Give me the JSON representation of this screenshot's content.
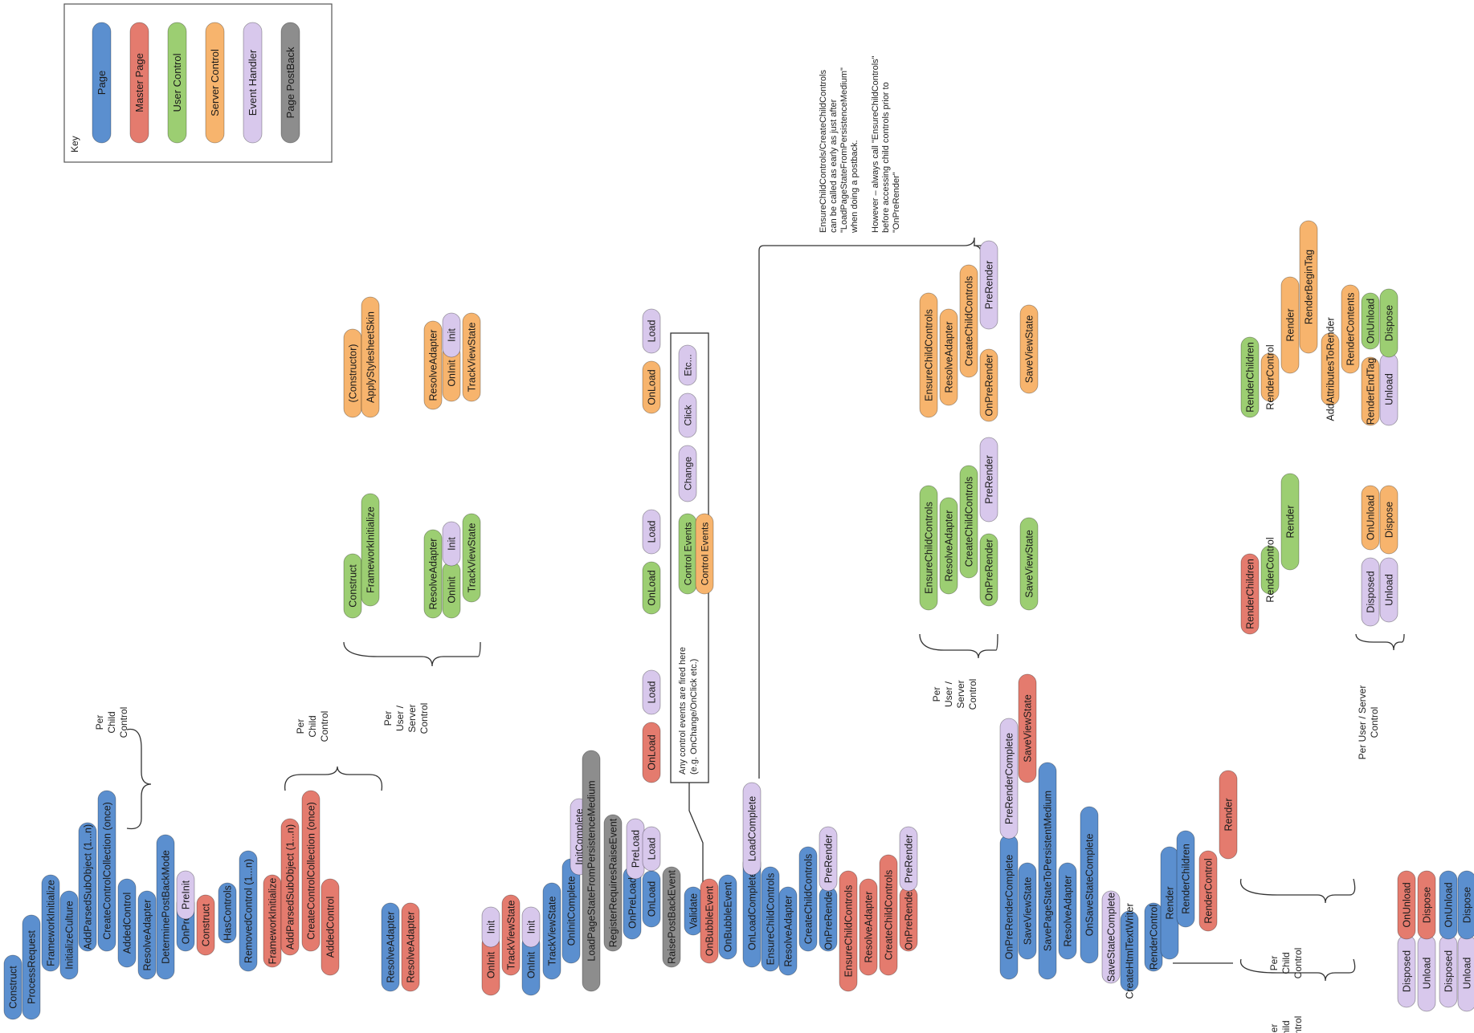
{
  "colors": {
    "page": "#5b8fcf",
    "master": "#e47b6e",
    "user": "#9cce72",
    "server": "#f7b46d",
    "event": "#d8c8ec",
    "postback": "#8d8d8d"
  },
  "key": {
    "title": "Key",
    "items": [
      {
        "label": "Page",
        "type": "page"
      },
      {
        "label": "Master Page",
        "type": "master"
      },
      {
        "label": "User Control",
        "type": "user"
      },
      {
        "label": "Server Control",
        "type": "server"
      },
      {
        "label": "Event Handler",
        "type": "event"
      },
      {
        "label": "Page PostBack",
        "type": "postback"
      }
    ]
  },
  "labels": {
    "per_child_control": [
      "Per",
      "Child",
      "Control"
    ],
    "per_user_server": [
      "Per",
      "User /",
      "Server",
      "Control"
    ],
    "per_user_server_inline": [
      "Per User / Server",
      "Control"
    ]
  },
  "events_box": {
    "note": [
      "Any control events are fired here",
      "(e.g. OnChange/OnClick etc.)"
    ],
    "items": [
      {
        "label": "Control Events",
        "type": "user"
      },
      {
        "label": "Control Events",
        "type": "server"
      },
      {
        "label": "Change",
        "type": "event"
      },
      {
        "label": "Click",
        "type": "event"
      },
      {
        "label": "Etc...",
        "type": "event"
      }
    ]
  },
  "annotation": [
    "EnsureChildControls/CreateChildControls",
    "can be called as early as just after",
    "\"LoadPageStateFromPersistenceMedium\"",
    "when doing a postback.",
    "",
    "However – always call \"EnsureChildControls\"",
    "before accessing child controls prior to",
    "\"OnPreRender\""
  ],
  "pills": [
    {
      "label": "Construct",
      "type": "page"
    },
    {
      "label": "ProcessRequest",
      "type": "page"
    },
    {
      "label": "FrameworkInitialize",
      "type": "page"
    },
    {
      "label": "InitializeCulture",
      "type": "page"
    },
    {
      "label": "AddParsedSubObject (1...n)",
      "type": "page"
    },
    {
      "label": "CreateControlCollection (once)",
      "type": "page"
    },
    {
      "label": "AddedControl",
      "type": "page"
    },
    {
      "label": "ResolveAdapter",
      "type": "page"
    },
    {
      "label": "DeterminePostBackMode",
      "type": "page"
    },
    {
      "label": "OnPreInit",
      "type": "page"
    },
    {
      "label": "PreInit",
      "type": "event"
    },
    {
      "label": "Construct",
      "type": "master"
    },
    {
      "label": "HasControls",
      "type": "page"
    },
    {
      "label": "RemovedControl (1...n)",
      "type": "page"
    },
    {
      "label": "FrameworkInitialize",
      "type": "master"
    },
    {
      "label": "AddParsedSubObject (1...n)",
      "type": "master"
    },
    {
      "label": "CreateControlCollection (once)",
      "type": "master"
    },
    {
      "label": "AddedControl",
      "type": "master"
    },
    {
      "label": "ResolveAdapter",
      "type": "page"
    },
    {
      "label": "ResolveAdapter",
      "type": "master"
    },
    {
      "label": "Construct",
      "type": "user"
    },
    {
      "label": "FrameworkInitialize",
      "type": "user"
    },
    {
      "label": "ResolveAdapter",
      "type": "user"
    },
    {
      "label": "OnInit",
      "type": "user"
    },
    {
      "label": "Init",
      "type": "event"
    },
    {
      "label": "TrackViewState",
      "type": "user"
    },
    {
      "label": "(Constructor)",
      "type": "server"
    },
    {
      "label": "ApplyStylesheetSkin",
      "type": "server"
    },
    {
      "label": "ResolveAdapter",
      "type": "server"
    },
    {
      "label": "OnInit",
      "type": "server"
    },
    {
      "label": "Init",
      "type": "event"
    },
    {
      "label": "TrackViewState",
      "type": "server"
    },
    {
      "label": "OnInit",
      "type": "master"
    },
    {
      "label": "Init",
      "type": "event"
    },
    {
      "label": "TrackViewState",
      "type": "master"
    },
    {
      "label": "OnInit",
      "type": "page"
    },
    {
      "label": "Init",
      "type": "event"
    },
    {
      "label": "TrackViewState",
      "type": "page"
    },
    {
      "label": "OnInitComplete",
      "type": "page"
    },
    {
      "label": "InitComplete",
      "type": "event"
    },
    {
      "label": "LoadPageStateFromPersistenceMedium",
      "type": "postback"
    },
    {
      "label": "RegisterRequiresRaiseEvent",
      "type": "postback"
    },
    {
      "label": "OnPreLoad",
      "type": "page"
    },
    {
      "label": "PreLoad",
      "type": "event"
    },
    {
      "label": "OnLoad",
      "type": "page"
    },
    {
      "label": "Load",
      "type": "event"
    },
    {
      "label": "RaisePostBackEvent",
      "type": "postback"
    },
    {
      "label": "Validate",
      "type": "page"
    },
    {
      "label": "OnLoad",
      "type": "master"
    },
    {
      "label": "Load",
      "type": "event"
    },
    {
      "label": "OnLoad",
      "type": "user"
    },
    {
      "label": "Load",
      "type": "event"
    },
    {
      "label": "OnLoad",
      "type": "server"
    },
    {
      "label": "Load",
      "type": "event"
    },
    {
      "label": "OnBubbleEvent",
      "type": "master"
    },
    {
      "label": "OnBubbleEvent",
      "type": "page"
    },
    {
      "label": "OnLoadComplete",
      "type": "page"
    },
    {
      "label": "LoadComplete",
      "type": "event"
    },
    {
      "label": "EnsureChildControls",
      "type": "page"
    },
    {
      "label": "ResolveAdapter",
      "type": "page"
    },
    {
      "label": "CreateChildControls",
      "type": "page"
    },
    {
      "label": "OnPreRender",
      "type": "page"
    },
    {
      "label": "PreRender",
      "type": "event"
    },
    {
      "label": "EnsureChildControls",
      "type": "master"
    },
    {
      "label": "ResolveAdapter",
      "type": "master"
    },
    {
      "label": "CreateChildControls",
      "type": "master"
    },
    {
      "label": "OnPreRender",
      "type": "master"
    },
    {
      "label": "PreRender",
      "type": "event"
    },
    {
      "label": "EnsureChildControls",
      "type": "user"
    },
    {
      "label": "ResolveAdapter",
      "type": "user"
    },
    {
      "label": "CreateChildControls",
      "type": "user"
    },
    {
      "label": "OnPreRender",
      "type": "user"
    },
    {
      "label": "PreRender",
      "type": "event"
    },
    {
      "label": "SaveViewState",
      "type": "user"
    },
    {
      "label": "EnsureChildControls",
      "type": "server"
    },
    {
      "label": "ResolveAdapter",
      "type": "server"
    },
    {
      "label": "CreateChildControls",
      "type": "server"
    },
    {
      "label": "OnPreRender",
      "type": "server"
    },
    {
      "label": "PreRender",
      "type": "event"
    },
    {
      "label": "SaveViewState",
      "type": "server"
    },
    {
      "label": "OnPreRenderComplete",
      "type": "page"
    },
    {
      "label": "PreRenderComplete",
      "type": "event"
    },
    {
      "label": "SaveViewState",
      "type": "page"
    },
    {
      "label": "SaveViewState",
      "type": "master"
    },
    {
      "label": "SavePageStateToPersistentMedium",
      "type": "page"
    },
    {
      "label": "ResolveAdapter",
      "type": "page"
    },
    {
      "label": "OnSaveStateComplete",
      "type": "page"
    },
    {
      "label": "SaveStateComplete",
      "type": "event"
    },
    {
      "label": "CreateHtmlTextWriter",
      "type": "page"
    },
    {
      "label": "RenderControl",
      "type": "page"
    },
    {
      "label": "Render",
      "type": "page"
    },
    {
      "label": "RenderChildren",
      "type": "page"
    },
    {
      "label": "RenderControl",
      "type": "master"
    },
    {
      "label": "Render",
      "type": "master"
    },
    {
      "label": "RenderChildren",
      "type": "master"
    },
    {
      "label": "RenderControl",
      "type": "user"
    },
    {
      "label": "Render",
      "type": "user"
    },
    {
      "label": "RenderChildren",
      "type": "user"
    },
    {
      "label": "RenderControl",
      "type": "server"
    },
    {
      "label": "Render",
      "type": "server"
    },
    {
      "label": "RenderBeginTag",
      "type": "server"
    },
    {
      "label": "AddAttributesToRender",
      "type": "server"
    },
    {
      "label": "RenderContents",
      "type": "server"
    },
    {
      "label": "RenderEndTag",
      "type": "server"
    },
    {
      "label": "OnUnload",
      "type": "user"
    },
    {
      "label": "Unload",
      "type": "event"
    },
    {
      "label": "Dispose",
      "type": "user"
    },
    {
      "label": "Disposed",
      "type": "event"
    },
    {
      "label": "OnUnload",
      "type": "server"
    },
    {
      "label": "Unload",
      "type": "event"
    },
    {
      "label": "Dispose",
      "type": "server"
    },
    {
      "label": "Disposed",
      "type": "event"
    },
    {
      "label": "OnUnload",
      "type": "master"
    },
    {
      "label": "Unload",
      "type": "event"
    },
    {
      "label": "Dispose",
      "type": "master"
    },
    {
      "label": "Disposed",
      "type": "event"
    },
    {
      "label": "OnUnload",
      "type": "page"
    },
    {
      "label": "Unload",
      "type": "event"
    },
    {
      "label": "Dispose",
      "type": "page"
    },
    {
      "label": "Disposed",
      "type": "event"
    }
  ]
}
